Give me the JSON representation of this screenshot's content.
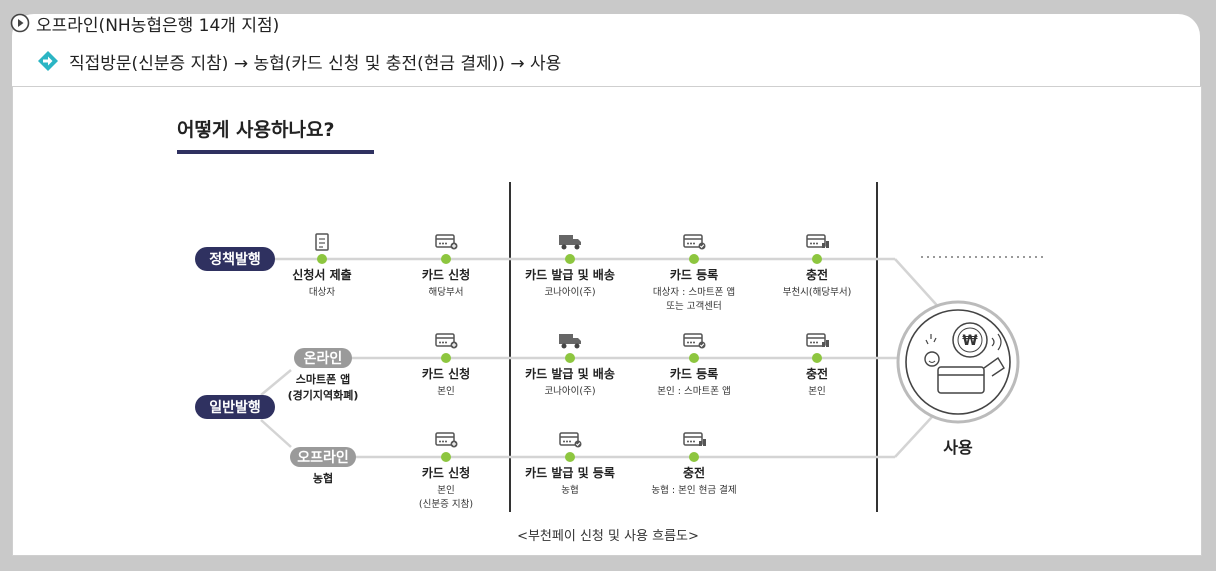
{
  "header": {
    "offline_title": "오프라인(NH농협은행 14개 지점)",
    "step_line": "직접방문(신분증 지참) → 농협(카드 신청 및 충전(현금 결제)) → 사용"
  },
  "figure": {
    "title": "어떻게 사용하나요?",
    "caption": "<부천페이 신청 및 사용 흐름도>",
    "badges": {
      "policy": "정책발행",
      "general": "일반발행",
      "online": "온라인",
      "offline": "오프라인"
    },
    "online_sub": [
      "스마트폰 앱",
      "(경기지역화폐)"
    ],
    "offline_sub": "농협",
    "use_label": "사용",
    "policy_steps": [
      {
        "title": "신청서 제출",
        "sub": [
          "대상자"
        ],
        "icon": "document-icon"
      },
      {
        "title": "카드 신청",
        "sub": [
          "해당부서"
        ],
        "icon": "card-add-icon"
      },
      {
        "title": "카드 발급 및 배송",
        "sub": [
          "코나아이(주)"
        ],
        "icon": "truck-icon"
      },
      {
        "title": "카드 등록",
        "sub": [
          "대상자 : 스마트폰 앱",
          "또는 고객센터"
        ],
        "icon": "card-check-icon"
      },
      {
        "title": "충전",
        "sub": [
          "부천시(해당부서)"
        ],
        "icon": "card-coins-icon"
      }
    ],
    "online_steps": [
      {
        "title": "카드 신청",
        "sub": [
          "본인"
        ],
        "icon": "card-add-icon"
      },
      {
        "title": "카드 발급 및 배송",
        "sub": [
          "코나아이(주)"
        ],
        "icon": "truck-icon"
      },
      {
        "title": "카드 등록",
        "sub": [
          "본인 : 스마트폰 앱"
        ],
        "icon": "card-check-icon"
      },
      {
        "title": "충전",
        "sub": [
          "본인"
        ],
        "icon": "card-coins-icon"
      }
    ],
    "offline_steps": [
      {
        "title": "카드 신청",
        "sub": [
          "본인",
          "(신분증 지참)"
        ],
        "icon": "card-add-icon"
      },
      {
        "title": "카드 발급 및 등록",
        "sub": [
          "농협"
        ],
        "icon": "card-check-icon"
      },
      {
        "title": "충전",
        "sub": [
          "농협 : 본인 현금 결제"
        ],
        "icon": "card-coins-icon"
      }
    ],
    "colors": {
      "navy": "#2f3160",
      "green": "#8dc63f",
      "badge_gray": "#9a9a9a",
      "line_gray": "#d4d4d4",
      "divider": "#333333",
      "diamond": "#2bb5c4"
    }
  }
}
